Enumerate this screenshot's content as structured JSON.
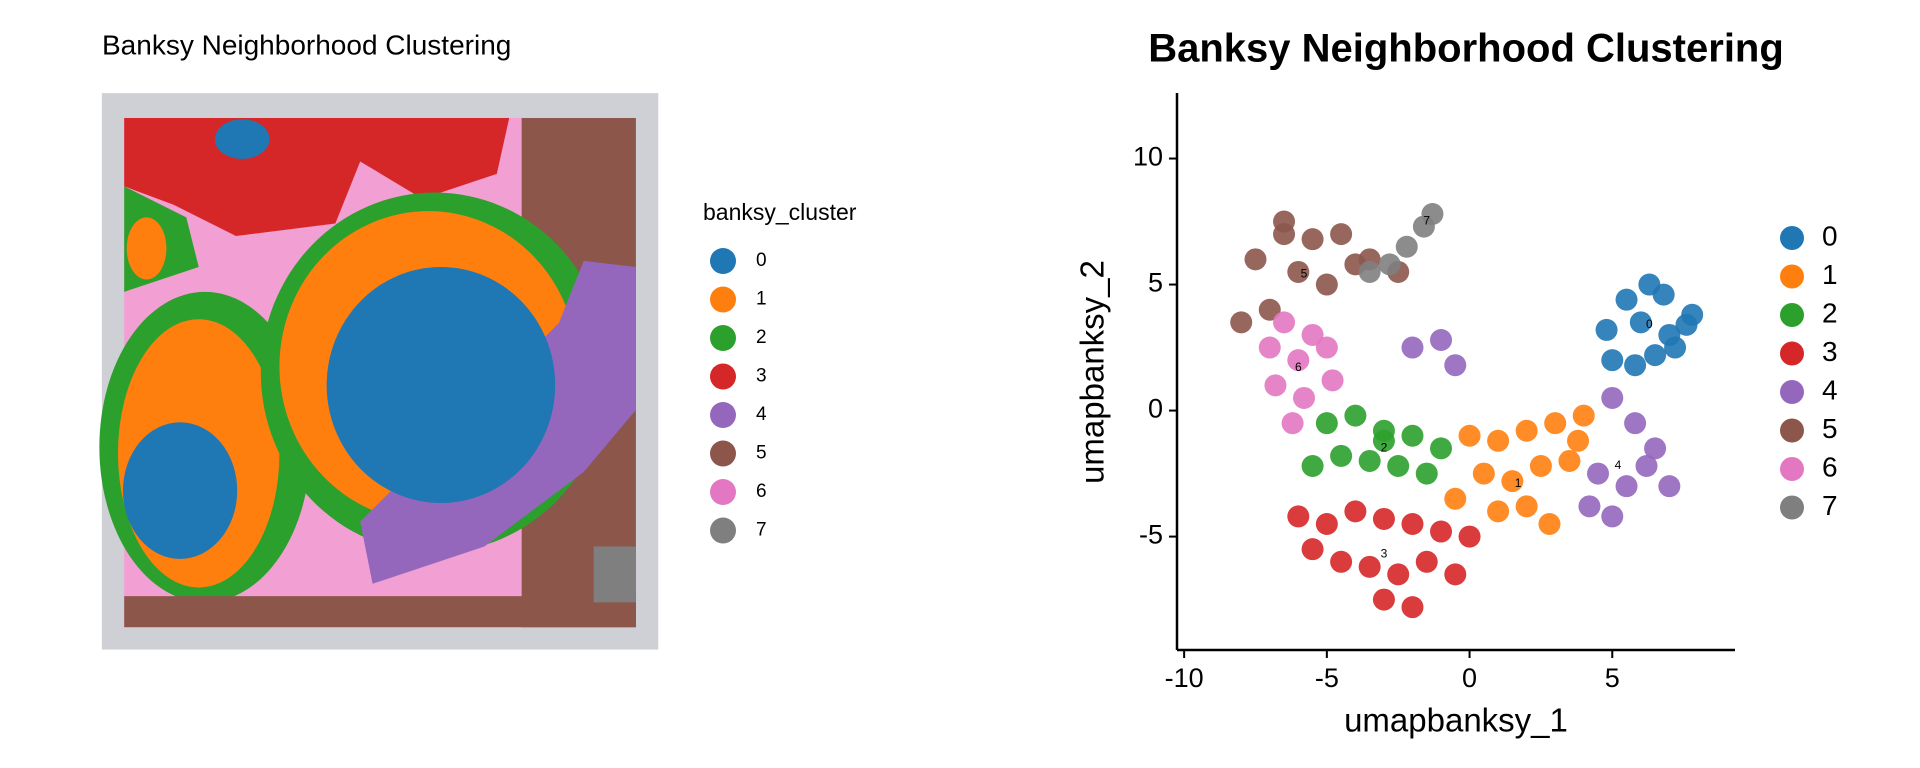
{
  "chart_data": [
    {
      "type": "spatial",
      "title": "Banksy Neighborhood Clustering",
      "legend_title": "banksy_cluster",
      "series": [
        {
          "name": "0",
          "color": "#1f77b4"
        },
        {
          "name": "1",
          "color": "#ff7f0e"
        },
        {
          "name": "2",
          "color": "#2ca02c"
        },
        {
          "name": "3",
          "color": "#d62728"
        },
        {
          "name": "4",
          "color": "#9467bd"
        },
        {
          "name": "5",
          "color": "#8c564b"
        },
        {
          "name": "6",
          "color": "#e377c2"
        },
        {
          "name": "7",
          "color": "#7f7f7f"
        }
      ]
    },
    {
      "type": "scatter",
      "title": "Banksy Neighborhood Clustering",
      "xlabel": "umapbanksy_1",
      "ylabel": "umapbanksy_2",
      "xlim": [
        -10.25,
        9.3
      ],
      "ylim": [
        -9.5,
        12.6
      ],
      "xticks": [
        -10,
        -5,
        0,
        5
      ],
      "yticks": [
        -5,
        0,
        5,
        10
      ],
      "series": [
        {
          "name": "0",
          "color": "#1f77b4",
          "x": [
            5.0,
            5.8,
            6.5,
            7.2,
            7.6,
            6.0,
            6.8,
            5.5,
            7.0,
            6.3,
            4.8,
            7.8
          ],
          "y": [
            2.0,
            1.8,
            2.2,
            2.5,
            3.4,
            3.5,
            4.6,
            4.4,
            3.0,
            5.0,
            3.2,
            3.8
          ]
        },
        {
          "name": "1",
          "color": "#ff7f0e",
          "x": [
            0,
            1,
            2,
            3,
            4,
            0.5,
            1.5,
            2.5,
            3.5,
            1,
            2,
            3.8,
            -0.5,
            2.8
          ],
          "y": [
            -1,
            -1.2,
            -0.8,
            -0.5,
            -0.2,
            -2.5,
            -2.8,
            -2.2,
            -2.0,
            -4,
            -3.8,
            -1.2,
            -3.5,
            -4.5
          ]
        },
        {
          "name": "2",
          "color": "#2ca02c",
          "x": [
            -5,
            -4,
            -3,
            -2,
            -1,
            -4.5,
            -3.5,
            -2.5,
            -1.5,
            -3,
            -5.5
          ],
          "y": [
            -0.5,
            -0.2,
            -0.8,
            -1.0,
            -1.5,
            -1.8,
            -2,
            -2.2,
            -2.5,
            -1.2,
            -2.2
          ]
        },
        {
          "name": "3",
          "color": "#d62728",
          "x": [
            -6,
            -5,
            -4,
            -3,
            -2,
            -1,
            0,
            -5.5,
            -4.5,
            -3.5,
            -2.5,
            -1.5,
            -3,
            -2,
            -0.5
          ],
          "y": [
            -4.2,
            -4.5,
            -4.0,
            -4.3,
            -4.5,
            -4.8,
            -5,
            -5.5,
            -6,
            -6.2,
            -6.5,
            -6,
            -7.5,
            -7.8,
            -6.5
          ]
        },
        {
          "name": "4",
          "color": "#9467bd",
          "x": [
            5,
            5.8,
            6.5,
            4.5,
            5.5,
            6.2,
            7,
            5,
            4.2,
            -2,
            -1,
            -0.5
          ],
          "y": [
            0.5,
            -0.5,
            -1.5,
            -2.5,
            -3,
            -2.2,
            -3,
            -4.2,
            -3.8,
            2.5,
            2.8,
            1.8
          ]
        },
        {
          "name": "5",
          "color": "#8c564b",
          "x": [
            -7.5,
            -6.5,
            -5.5,
            -4.5,
            -3.5,
            -6,
            -5,
            -4,
            -7,
            -8,
            -6.5,
            -2.5
          ],
          "y": [
            6,
            7.5,
            6.8,
            7,
            6,
            5.5,
            5,
            5.8,
            4,
            3.5,
            7,
            5.5
          ]
        },
        {
          "name": "6",
          "color": "#e377c2",
          "x": [
            -7,
            -6.5,
            -6,
            -5.5,
            -5,
            -6.8,
            -5.8,
            -4.8,
            -6.2
          ],
          "y": [
            2.5,
            3.5,
            2,
            3,
            2.5,
            1,
            0.5,
            1.2,
            -0.5
          ]
        },
        {
          "name": "7",
          "color": "#7f7f7f",
          "x": [
            -2.8,
            -2.2,
            -1.6,
            -1.3,
            -3.5
          ],
          "y": [
            5.8,
            6.5,
            7.3,
            7.8,
            5.5
          ]
        }
      ],
      "annotations": [
        {
          "text": "0",
          "x": 6.3,
          "y": 3.4
        },
        {
          "text": "1",
          "x": 1.7,
          "y": -2.9
        },
        {
          "text": "2",
          "x": -3,
          "y": -1.5
        },
        {
          "text": "3",
          "x": -3,
          "y": -5.7
        },
        {
          "text": "4",
          "x": 5.2,
          "y": -2.2
        },
        {
          "text": "5",
          "x": -5.8,
          "y": 5.4
        },
        {
          "text": "6",
          "x": -6,
          "y": 1.7
        },
        {
          "text": "7",
          "x": -1.5,
          "y": 7.5
        }
      ]
    }
  ]
}
